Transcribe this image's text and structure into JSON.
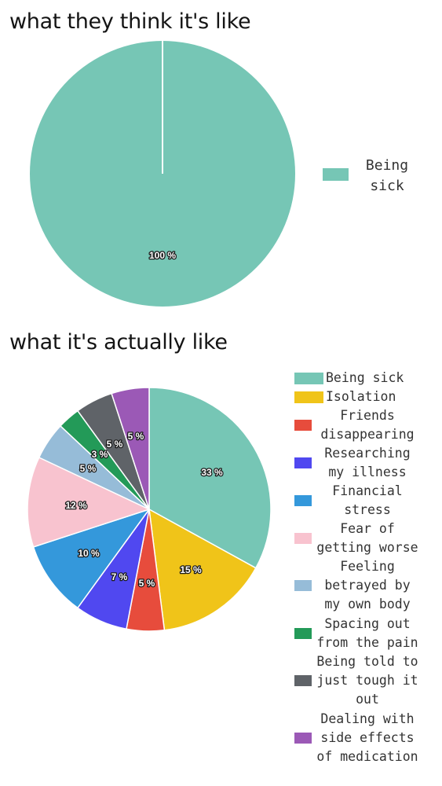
{
  "chart_data": [
    {
      "type": "pie",
      "title": "what they think it's like",
      "slices": [
        {
          "label": "Being sick",
          "value": 100,
          "display": "100 %",
          "color": "#76c6b5"
        }
      ],
      "legend_placement": "right"
    },
    {
      "type": "pie",
      "title": "what it's actually like",
      "slices": [
        {
          "label": "Being sick",
          "value": 33,
          "display": "33 %",
          "color": "#76c6b5"
        },
        {
          "label": "Isolation",
          "value": 15,
          "display": "15 %",
          "color": "#f0c419"
        },
        {
          "label": "Friends disappearing",
          "value": 5,
          "display": "5 %",
          "color": "#e74c3c"
        },
        {
          "label": "Researching my illness",
          "value": 7,
          "display": "7 %",
          "color": "#5048f0"
        },
        {
          "label": "Financial stress",
          "value": 10,
          "display": "10 %",
          "color": "#3498db"
        },
        {
          "label": "Fear of getting worse",
          "value": 12,
          "display": "12 %",
          "color": "#f8c3cf"
        },
        {
          "label": "Feeling betrayed by my own body",
          "value": 5,
          "display": "5 %",
          "color": "#96bcd8"
        },
        {
          "label": "Spacing out from the pain",
          "value": 3,
          "display": "3 %",
          "color": "#239a58"
        },
        {
          "label": "Being told to just tough it out",
          "value": 5,
          "display": "5 %",
          "color": "#5f6368"
        },
        {
          "label": "Dealing with side effects of medication",
          "value": 5,
          "display": "5 %",
          "color": "#9b59b6"
        }
      ],
      "legend_placement": "right"
    }
  ]
}
